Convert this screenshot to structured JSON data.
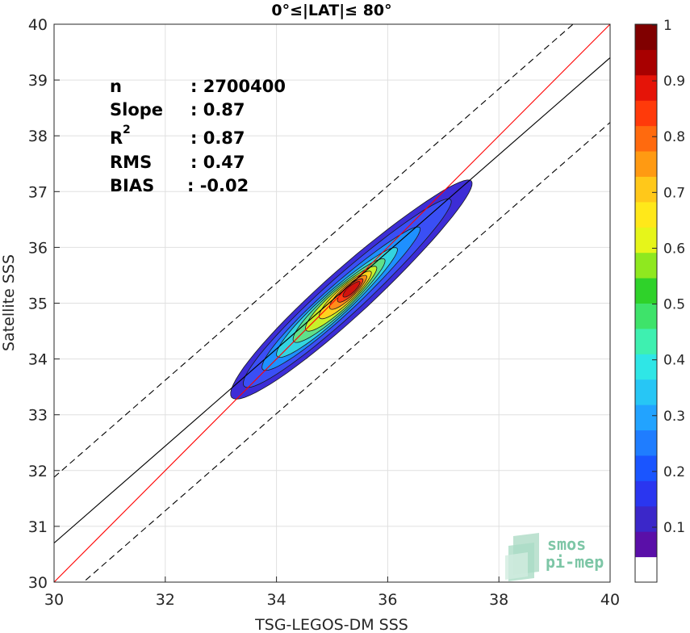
{
  "chart_data": {
    "type": "heatmap",
    "title": "0°≤|LAT|≤ 80°",
    "xlabel": "TSG-LEGOS-DM SSS",
    "ylabel": "Satellite SSS",
    "xlim": [
      30,
      40
    ],
    "ylim": [
      30,
      40
    ],
    "xticks": [
      "30",
      "32",
      "34",
      "36",
      "38",
      "40"
    ],
    "yticks": [
      "30",
      "31",
      "32",
      "33",
      "34",
      "35",
      "36",
      "37",
      "38",
      "39",
      "40"
    ],
    "grid": true,
    "stats": [
      {
        "label": "n",
        "value": ": 2700400"
      },
      {
        "label": "Slope",
        "value": ": 0.87"
      },
      {
        "label": "R",
        "sup": "2",
        "value": ": 0.87"
      },
      {
        "label": "RMS",
        "value": ": 0.47"
      },
      {
        "label": "BIAS",
        "value": ": -0.02"
      }
    ],
    "density_peak": {
      "x": 35.35,
      "y": 35.25
    },
    "density_axis_angle_deg": 42,
    "density_contours": [
      {
        "level": 0.05,
        "color": "#3d2dd6",
        "half_len": 2.9,
        "half_wid": 0.42,
        "offset": 0.0
      },
      {
        "level": 0.1,
        "color": "#3a4ff5",
        "half_len": 2.5,
        "half_wid": 0.34,
        "offset": -0.1
      },
      {
        "level": 0.2,
        "color": "#1e90ff",
        "half_len": 1.9,
        "half_wid": 0.27,
        "offset": -0.25
      },
      {
        "level": 0.3,
        "color": "#33d4e0",
        "half_len": 1.45,
        "half_wid": 0.23,
        "offset": -0.35
      },
      {
        "level": 0.4,
        "color": "#5fe08a",
        "half_len": 1.1,
        "half_wid": 0.2,
        "offset": -0.3
      },
      {
        "level": 0.5,
        "color": "#c8f02a",
        "half_len": 0.85,
        "half_wid": 0.17,
        "offset": -0.25
      },
      {
        "level": 0.6,
        "color": "#ffd21e",
        "half_len": 0.62,
        "half_wid": 0.14,
        "offset": -0.15
      },
      {
        "level": 0.7,
        "color": "#ff8c1a",
        "half_len": 0.44,
        "half_wid": 0.11,
        "offset": -0.08
      },
      {
        "level": 0.8,
        "color": "#ff3b14",
        "half_len": 0.3,
        "half_wid": 0.085,
        "offset": -0.03
      },
      {
        "level": 0.9,
        "color": "#d1120d",
        "half_len": 0.2,
        "half_wid": 0.06,
        "offset": 0.0
      }
    ],
    "lines": [
      {
        "name": "identity",
        "color": "#ff0000",
        "style": "solid",
        "intercept": 0.0,
        "slope": 1.0
      },
      {
        "name": "fit",
        "color": "#000000",
        "style": "solid",
        "intercept": 4.6,
        "slope": 0.87
      },
      {
        "name": "upper",
        "color": "#000000",
        "style": "dashed",
        "intercept": 5.78,
        "slope": 0.87
      },
      {
        "name": "lower",
        "color": "#000000",
        "style": "dashed",
        "intercept": 3.44,
        "slope": 0.87
      }
    ],
    "colorbar": {
      "ticks": [
        "0.1",
        "0.2",
        "0.3",
        "0.4",
        "0.5",
        "0.6",
        "0.7",
        "0.8",
        "0.9",
        "1"
      ],
      "colors": [
        "#ffffff",
        "#5a0fa8",
        "#3b27c9",
        "#2a36f0",
        "#1a55ff",
        "#1f7dff",
        "#22a3ff",
        "#27c6f5",
        "#2fe6e6",
        "#3ef0b0",
        "#3ee36a",
        "#2fd22a",
        "#8fe81f",
        "#e6f51a",
        "#ffe81a",
        "#ffc81a",
        "#ff9a12",
        "#ff6a0e",
        "#ff3a0a",
        "#e51408",
        "#a80000",
        "#800000"
      ]
    },
    "logo": {
      "line1": "smos",
      "line2": "pi-mep",
      "color": "#7dc6a6"
    }
  }
}
